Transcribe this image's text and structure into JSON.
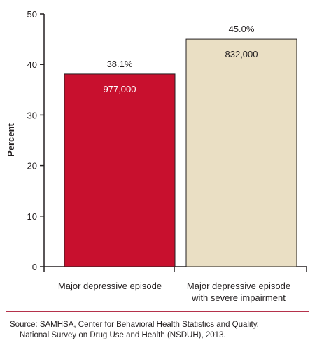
{
  "chart_data": {
    "type": "bar",
    "ylabel": "Percent",
    "ylim": [
      0,
      50
    ],
    "yticks": [
      0,
      10,
      20,
      30,
      40,
      50
    ],
    "grid": false,
    "categories": [
      [
        "Major depressive episode"
      ],
      [
        "Major depressive episode",
        "with severe impairment"
      ]
    ],
    "values": [
      38.1,
      45.0
    ],
    "value_labels": [
      "38.1%",
      "45.0%"
    ],
    "count_labels": [
      "977,000",
      "832,000"
    ],
    "colors": [
      "#c8102e",
      "#eadfc4"
    ],
    "count_label_colors": [
      "#ffffff",
      "#231f20"
    ]
  },
  "source": {
    "line1": "Source: SAMHSA, Center for Behavioral Health Statistics and Quality,",
    "line2": "National Survey on Drug Use and Health (NSDUH), 2013."
  },
  "colors": {
    "divider": "#b5324b",
    "axis": "#231f20"
  }
}
